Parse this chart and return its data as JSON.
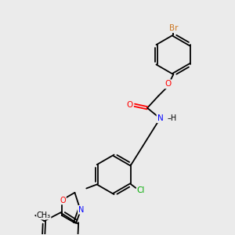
{
  "background_color": "#ebebeb",
  "bond_color": "#000000",
  "atom_colors": {
    "Br": "#cc7722",
    "O": "#ff0000",
    "N": "#0000ff",
    "Cl": "#00aa00",
    "C": "#000000",
    "H": "#000000"
  },
  "figsize": [
    3.0,
    3.0
  ],
  "dpi": 100
}
